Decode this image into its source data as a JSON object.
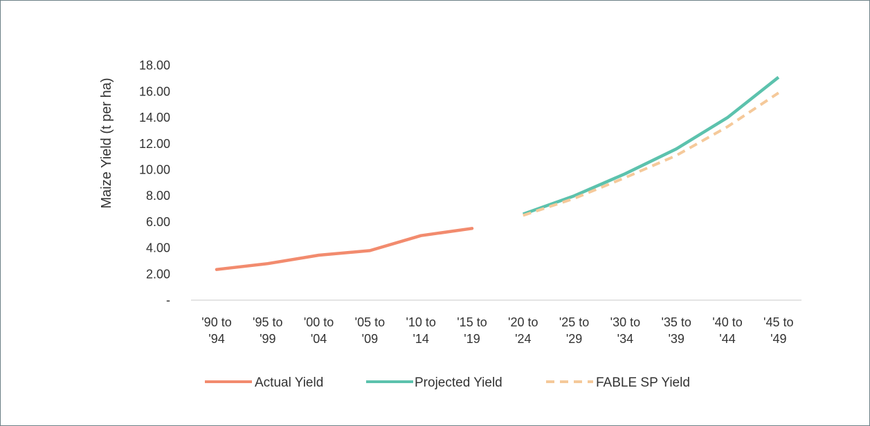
{
  "chart_data": {
    "type": "line",
    "title": "",
    "xlabel": "",
    "ylabel": "Maize Yield (t per ha)",
    "categories": [
      [
        "'90 to",
        "'94"
      ],
      [
        "'95 to",
        "'99"
      ],
      [
        "'00 to",
        "'04"
      ],
      [
        "'05 to",
        "'09"
      ],
      [
        "'10 to",
        "'14"
      ],
      [
        "'15 to",
        "'19"
      ],
      [
        "'20 to",
        "'24"
      ],
      [
        "'25 to",
        "'29"
      ],
      [
        "'30 to",
        "'34"
      ],
      [
        "'35 to",
        "'39"
      ],
      [
        "'40 to",
        "'44"
      ],
      [
        "'45 to",
        "'49"
      ]
    ],
    "ylim": [
      0,
      18
    ],
    "yticks": [
      "-",
      "2.00",
      "4.00",
      "6.00",
      "8.00",
      "10.00",
      "12.00",
      "14.00",
      "16.00",
      "18.00"
    ],
    "grid": false,
    "legend_position": "bottom",
    "series": [
      {
        "name": "Actual Yield",
        "color": "#f28b6e",
        "dashed": false,
        "values": [
          2.35,
          2.8,
          3.45,
          3.8,
          4.95,
          5.5,
          null,
          null,
          null,
          null,
          null,
          null
        ]
      },
      {
        "name": "Projected Yield",
        "color": "#5cc2ad",
        "dashed": false,
        "values": [
          null,
          null,
          null,
          null,
          null,
          null,
          6.6,
          8.0,
          9.7,
          11.6,
          14.0,
          17.1
        ]
      },
      {
        "name": "FABLE SP Yield",
        "color": "#f5c99a",
        "dashed": true,
        "values": [
          null,
          null,
          null,
          null,
          null,
          null,
          6.5,
          7.8,
          9.4,
          11.1,
          13.3,
          15.9
        ]
      }
    ]
  }
}
